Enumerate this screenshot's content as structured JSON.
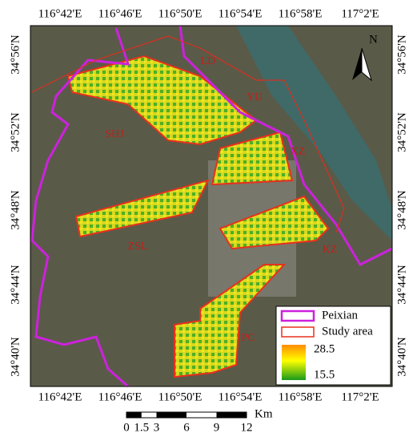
{
  "map": {
    "top_labels": [
      "116°42'E",
      "116°46'E",
      "116°50'E",
      "116°54'E",
      "116°58'E",
      "117°2'E"
    ],
    "bottom_labels": [
      "116°42'E",
      "116°46'E",
      "116°50'E",
      "116°54'E",
      "116°58'E",
      "117°2'E"
    ],
    "left_labels": [
      "34°56'N",
      "34°52'N",
      "34°48'N",
      "34°44'N",
      "34°40'N"
    ],
    "right_labels": [
      "34°56'N",
      "34°52'N",
      "34°48'N",
      "34°44'N",
      "34°40'N"
    ],
    "north": "N",
    "places": {
      "ld": "LD",
      "yu": "YU",
      "shj": "SHJ",
      "xz": "XZ",
      "zsl": "ZSL",
      "kz": "KZ",
      "pc": "PC"
    },
    "legend": {
      "boundary": "Peixian",
      "study_area": "Study area",
      "max": "28.5",
      "min": "15.5"
    },
    "scale": {
      "ticks": [
        "0",
        "1.5",
        "3",
        "6",
        "9",
        "12"
      ],
      "unit": "Km"
    }
  }
}
